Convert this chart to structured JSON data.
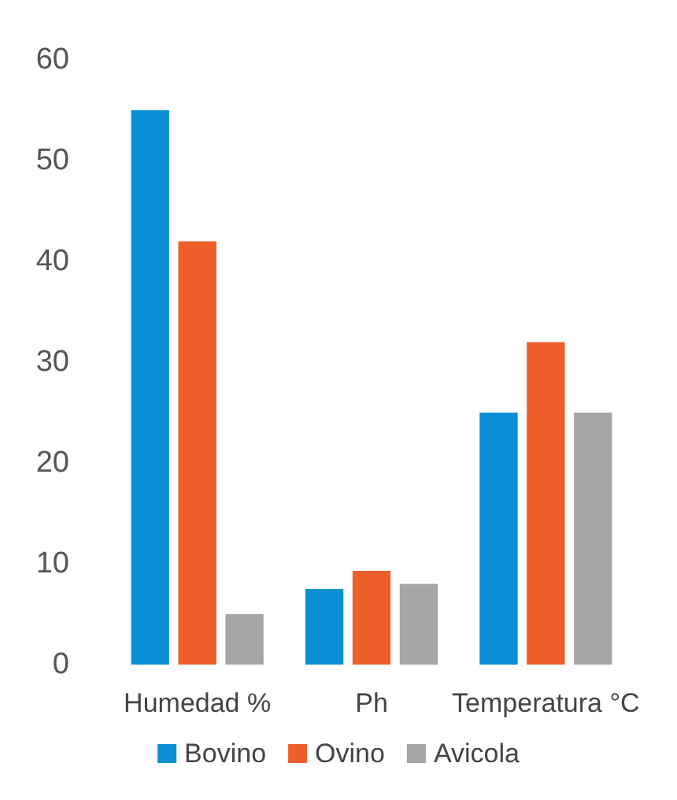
{
  "chart_data": {
    "type": "bar",
    "categories": [
      "Humedad %",
      "Ph",
      "Temperatura °C"
    ],
    "series": [
      {
        "name": "Bovino",
        "color": "#0b8fd4",
        "values": [
          55,
          7.5,
          25
        ]
      },
      {
        "name": "Ovino",
        "color": "#ec5f2a",
        "values": [
          42,
          9.3,
          32
        ]
      },
      {
        "name": "Avicola",
        "color": "#a5a5a5",
        "values": [
          5,
          8,
          25
        ]
      }
    ],
    "ylim": [
      0,
      60
    ],
    "yticks": [
      0,
      10,
      20,
      30,
      40,
      50,
      60
    ],
    "grid": false,
    "legend": "bottom"
  }
}
